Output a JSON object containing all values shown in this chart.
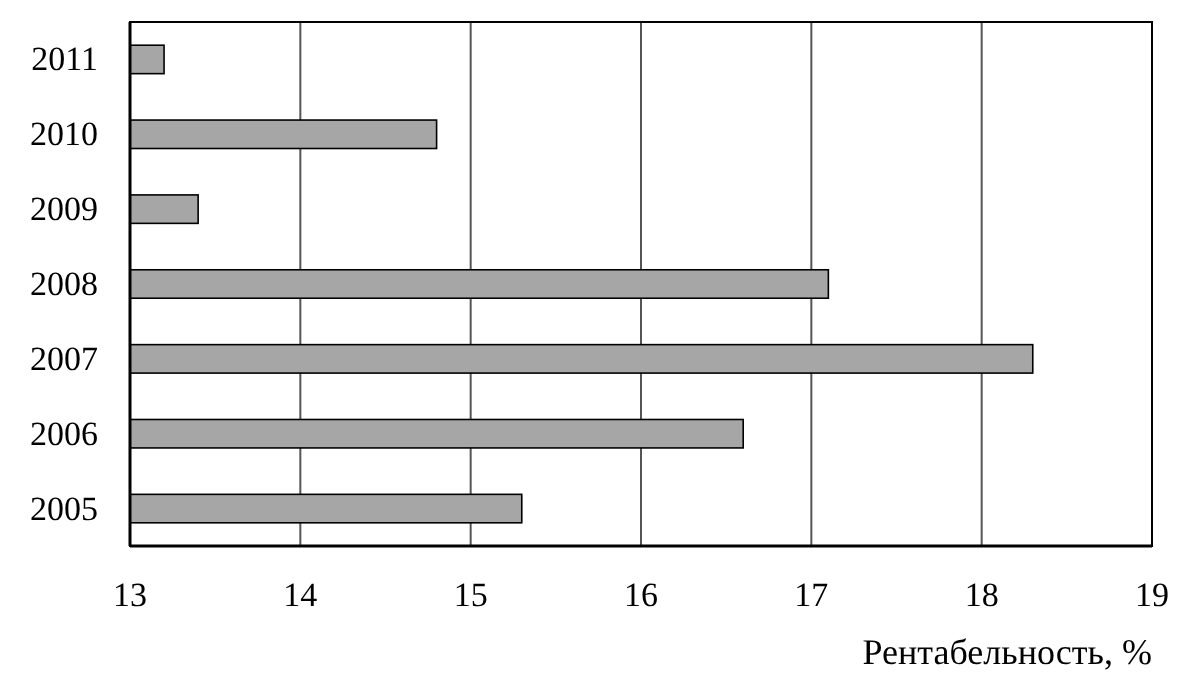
{
  "chart_data": {
    "type": "bar",
    "orientation": "horizontal",
    "xlabel": "Рентабельность, %",
    "categories": [
      "2011",
      "2010",
      "2009",
      "2008",
      "2007",
      "2006",
      "2005"
    ],
    "values": [
      13.2,
      14.8,
      13.4,
      17.1,
      18.3,
      16.6,
      15.3
    ],
    "color": "#a6a6a6",
    "xlim": [
      13,
      19
    ],
    "xticks": [
      13,
      14,
      15,
      16,
      17,
      18,
      19
    ],
    "grid": "x"
  }
}
